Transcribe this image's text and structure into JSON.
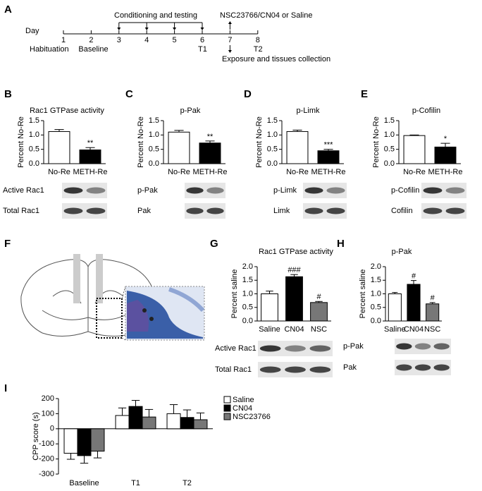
{
  "panels": [
    "A",
    "B",
    "C",
    "D",
    "E",
    "F",
    "G",
    "H",
    "I"
  ],
  "timeline": {
    "axis_label": "Day",
    "days": [
      1,
      2,
      3,
      4,
      5,
      6,
      7,
      8
    ],
    "day_notes": [
      "Habituation",
      "Baseline",
      null,
      null,
      null,
      "T1",
      null,
      "T2"
    ],
    "conditioning": "Conditioning and testing",
    "treatment": "NSC23766/CN04 or Saline",
    "exposure": "Exposure and tissues collection"
  },
  "blots": [
    [
      "Active Rac1",
      "Total Rac1"
    ],
    [
      "p-Pak",
      "Pak"
    ],
    [
      "p-Limk",
      "Limk"
    ],
    [
      "p-Cofilin",
      "Cofilin"
    ],
    [
      "Active Rac1",
      "Total Rac1"
    ],
    [
      "p-Pak",
      "Pak"
    ]
  ],
  "chart_data": [
    {
      "type": "bar",
      "title": "Rac1 GTPase activity",
      "ylabel": "Percent No-Re",
      "categories": [
        "No-Re",
        "METH-Re"
      ],
      "values": [
        1.12,
        0.48
      ],
      "errors": [
        0.07,
        0.08
      ],
      "annotations": [
        null,
        "**"
      ],
      "colors": [
        "#ffffff",
        "#000000"
      ],
      "ylim": [
        0,
        1.5
      ],
      "yticks": [
        {
          "value": 0,
          "label": "0.0"
        },
        0.5,
        {
          "value": 1,
          "label": "1.0"
        },
        1.5
      ]
    },
    {
      "type": "bar",
      "title": "p-Pak",
      "ylabel": "Percent No-Re",
      "categories": [
        "No-Re",
        "METH-Re"
      ],
      "values": [
        1.1,
        0.72
      ],
      "errors": [
        0.06,
        0.07
      ],
      "annotations": [
        null,
        "**"
      ],
      "colors": [
        "#ffffff",
        "#000000"
      ],
      "ylim": [
        0,
        1.5
      ],
      "yticks": [
        {
          "value": 0,
          "label": "0.0"
        },
        0.5,
        {
          "value": 1,
          "label": "1.0"
        },
        1.5
      ]
    },
    {
      "type": "bar",
      "title": "p-Limk",
      "ylabel": "Percent No-Re",
      "categories": [
        "No-Re",
        "METH-Re"
      ],
      "values": [
        1.12,
        0.45
      ],
      "errors": [
        0.05,
        0.05
      ],
      "annotations": [
        null,
        "***"
      ],
      "colors": [
        "#ffffff",
        "#000000"
      ],
      "ylim": [
        0,
        1.5
      ],
      "yticks": [
        {
          "value": 0,
          "label": "0.0"
        },
        0.5,
        {
          "value": 1,
          "label": "1.0"
        },
        1.5
      ]
    },
    {
      "type": "bar",
      "title": "p-Cofilin",
      "ylabel": "Percent No-Re",
      "categories": [
        "No-Re",
        "METH-Re"
      ],
      "values": [
        0.98,
        0.58
      ],
      "errors": [
        0.02,
        0.13
      ],
      "annotations": [
        null,
        "*"
      ],
      "colors": [
        "#ffffff",
        "#000000"
      ],
      "ylim": [
        0,
        1.5
      ],
      "yticks": [
        {
          "value": 0,
          "label": "0.0"
        },
        0.5,
        {
          "value": 1,
          "label": "1.0"
        },
        1.5
      ]
    },
    {
      "type": "bar",
      "title": "Rac1 GTPase activity",
      "ylabel": "Percent saline",
      "categories": [
        "Saline",
        "CN04",
        "NSC"
      ],
      "values": [
        1.0,
        1.63,
        0.68
      ],
      "errors": [
        0.1,
        0.08,
        0.04
      ],
      "annotations": [
        null,
        "###",
        "#"
      ],
      "colors": [
        "#ffffff",
        "#000000",
        "#777777"
      ],
      "ylim": [
        0,
        2
      ],
      "yticks": [
        {
          "value": 0,
          "label": "0.0"
        },
        0.5,
        {
          "value": 1,
          "label": "1.0"
        },
        1.5,
        {
          "value": 2,
          "label": "2.0"
        }
      ]
    },
    {
      "type": "bar",
      "title": "p-Pak",
      "ylabel": "Percent saline",
      "categories": [
        "Saline",
        "CN04",
        "NSC"
      ],
      "values": [
        1.0,
        1.35,
        0.63
      ],
      "errors": [
        0.05,
        0.14,
        0.05
      ],
      "annotations": [
        null,
        "#",
        "#"
      ],
      "colors": [
        "#ffffff",
        "#000000",
        "#777777"
      ],
      "ylim": [
        0,
        2
      ],
      "yticks": [
        {
          "value": 0,
          "label": "0.0"
        },
        0.5,
        {
          "value": 1,
          "label": "1.0"
        },
        1.5,
        {
          "value": 2,
          "label": "2.0"
        }
      ]
    },
    {
      "type": "grouped-bar",
      "ylabel": "CPP score (s)",
      "categories": [
        "Baseline",
        "T1",
        "T2"
      ],
      "series": [
        {
          "name": "Saline",
          "color": "#ffffff",
          "values": [
            -162,
            88,
            100
          ],
          "errors": [
            40,
            50,
            60
          ]
        },
        {
          "name": "CN04",
          "color": "#000000",
          "values": [
            -178,
            148,
            75
          ],
          "errors": [
            50,
            40,
            50
          ]
        },
        {
          "name": "NSC23766",
          "color": "#777777",
          "values": [
            -148,
            78,
            60
          ],
          "errors": [
            45,
            50,
            45
          ]
        }
      ],
      "ylim": [
        -300,
        200
      ],
      "yticks": [
        -300,
        -200,
        -100,
        0,
        100,
        200
      ]
    }
  ]
}
